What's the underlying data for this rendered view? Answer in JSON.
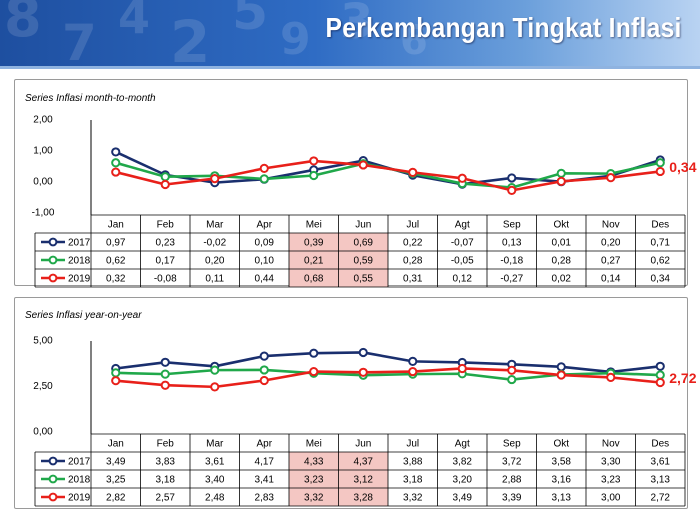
{
  "header": {
    "title": "Perkembangan Tingkat Inflasi"
  },
  "colors": {
    "2017": "#1a2f6e",
    "2018": "#20a84a",
    "2019": "#e8201a",
    "highlight": "#f4c7c3",
    "emphasis": "#e8201a"
  },
  "chart_data": [
    {
      "type": "line",
      "title": "Series Inflasi month-to-month",
      "categories": [
        "Jan",
        "Feb",
        "Mar",
        "Apr",
        "Mei",
        "Jun",
        "Jul",
        "Agt",
        "Sep",
        "Okt",
        "Nov",
        "Des"
      ],
      "yticks": [
        "2,00",
        "1,00",
        "0,00",
        "-1,00"
      ],
      "ylim": [
        -1,
        2
      ],
      "grid": false,
      "legend": "table-below",
      "highlight_columns": [
        "Mei",
        "Jun"
      ],
      "end_label": "0,34",
      "series": [
        {
          "name": "2017",
          "values": [
            0.97,
            0.23,
            -0.02,
            0.09,
            0.39,
            0.69,
            0.22,
            -0.07,
            0.13,
            0.01,
            0.2,
            0.71
          ],
          "labels": [
            "0,97",
            "0,23",
            "-0,02",
            "0,09",
            "0,39",
            "0,69",
            "0,22",
            "-0,07",
            "0,13",
            "0,01",
            "0,20",
            "0,71"
          ]
        },
        {
          "name": "2018",
          "values": [
            0.62,
            0.17,
            0.2,
            0.1,
            0.21,
            0.59,
            0.28,
            -0.05,
            -0.18,
            0.28,
            0.27,
            0.62
          ],
          "labels": [
            "0,62",
            "0,17",
            "0,20",
            "0,10",
            "0,21",
            "0,59",
            "0,28",
            "-0,05",
            "-0,18",
            "0,28",
            "0,27",
            "0,62"
          ]
        },
        {
          "name": "2019",
          "values": [
            0.32,
            -0.08,
            0.11,
            0.44,
            0.68,
            0.55,
            0.31,
            0.12,
            -0.27,
            0.02,
            0.14,
            0.34
          ],
          "labels": [
            "0,32",
            "-0,08",
            "0,11",
            "0,44",
            "0,68",
            "0,55",
            "0,31",
            "0,12",
            "-0,27",
            "0,02",
            "0,14",
            "0,34"
          ]
        }
      ]
    },
    {
      "type": "line",
      "title": "Series Inflasi year-on-year",
      "categories": [
        "Jan",
        "Feb",
        "Mar",
        "Apr",
        "Mei",
        "Jun",
        "Jul",
        "Agt",
        "Sep",
        "Okt",
        "Nov",
        "Des"
      ],
      "yticks": [
        "5,00",
        "2,50",
        "0,00"
      ],
      "ylim": [
        0,
        5
      ],
      "grid": false,
      "legend": "table-below",
      "highlight_columns": [
        "Mei",
        "Jun"
      ],
      "end_label": "2,72",
      "series": [
        {
          "name": "2017",
          "values": [
            3.49,
            3.83,
            3.61,
            4.17,
            4.33,
            4.37,
            3.88,
            3.82,
            3.72,
            3.58,
            3.3,
            3.61
          ],
          "labels": [
            "3,49",
            "3,83",
            "3,61",
            "4,17",
            "4,33",
            "4,37",
            "3,88",
            "3,82",
            "3,72",
            "3,58",
            "3,30",
            "3,61"
          ]
        },
        {
          "name": "2018",
          "values": [
            3.25,
            3.18,
            3.4,
            3.41,
            3.23,
            3.12,
            3.18,
            3.2,
            2.88,
            3.16,
            3.23,
            3.13
          ],
          "labels": [
            "3,25",
            "3,18",
            "3,40",
            "3,41",
            "3,23",
            "3,12",
            "3,18",
            "3,20",
            "2,88",
            "3,16",
            "3,23",
            "3,13"
          ]
        },
        {
          "name": "2019",
          "values": [
            2.82,
            2.57,
            2.48,
            2.83,
            3.32,
            3.28,
            3.32,
            3.49,
            3.39,
            3.13,
            3.0,
            2.72
          ],
          "labels": [
            "2,82",
            "2,57",
            "2,48",
            "2,83",
            "3,32",
            "3,28",
            "3,32",
            "3,49",
            "3,39",
            "3,13",
            "3,00",
            "2,72"
          ]
        }
      ]
    }
  ]
}
